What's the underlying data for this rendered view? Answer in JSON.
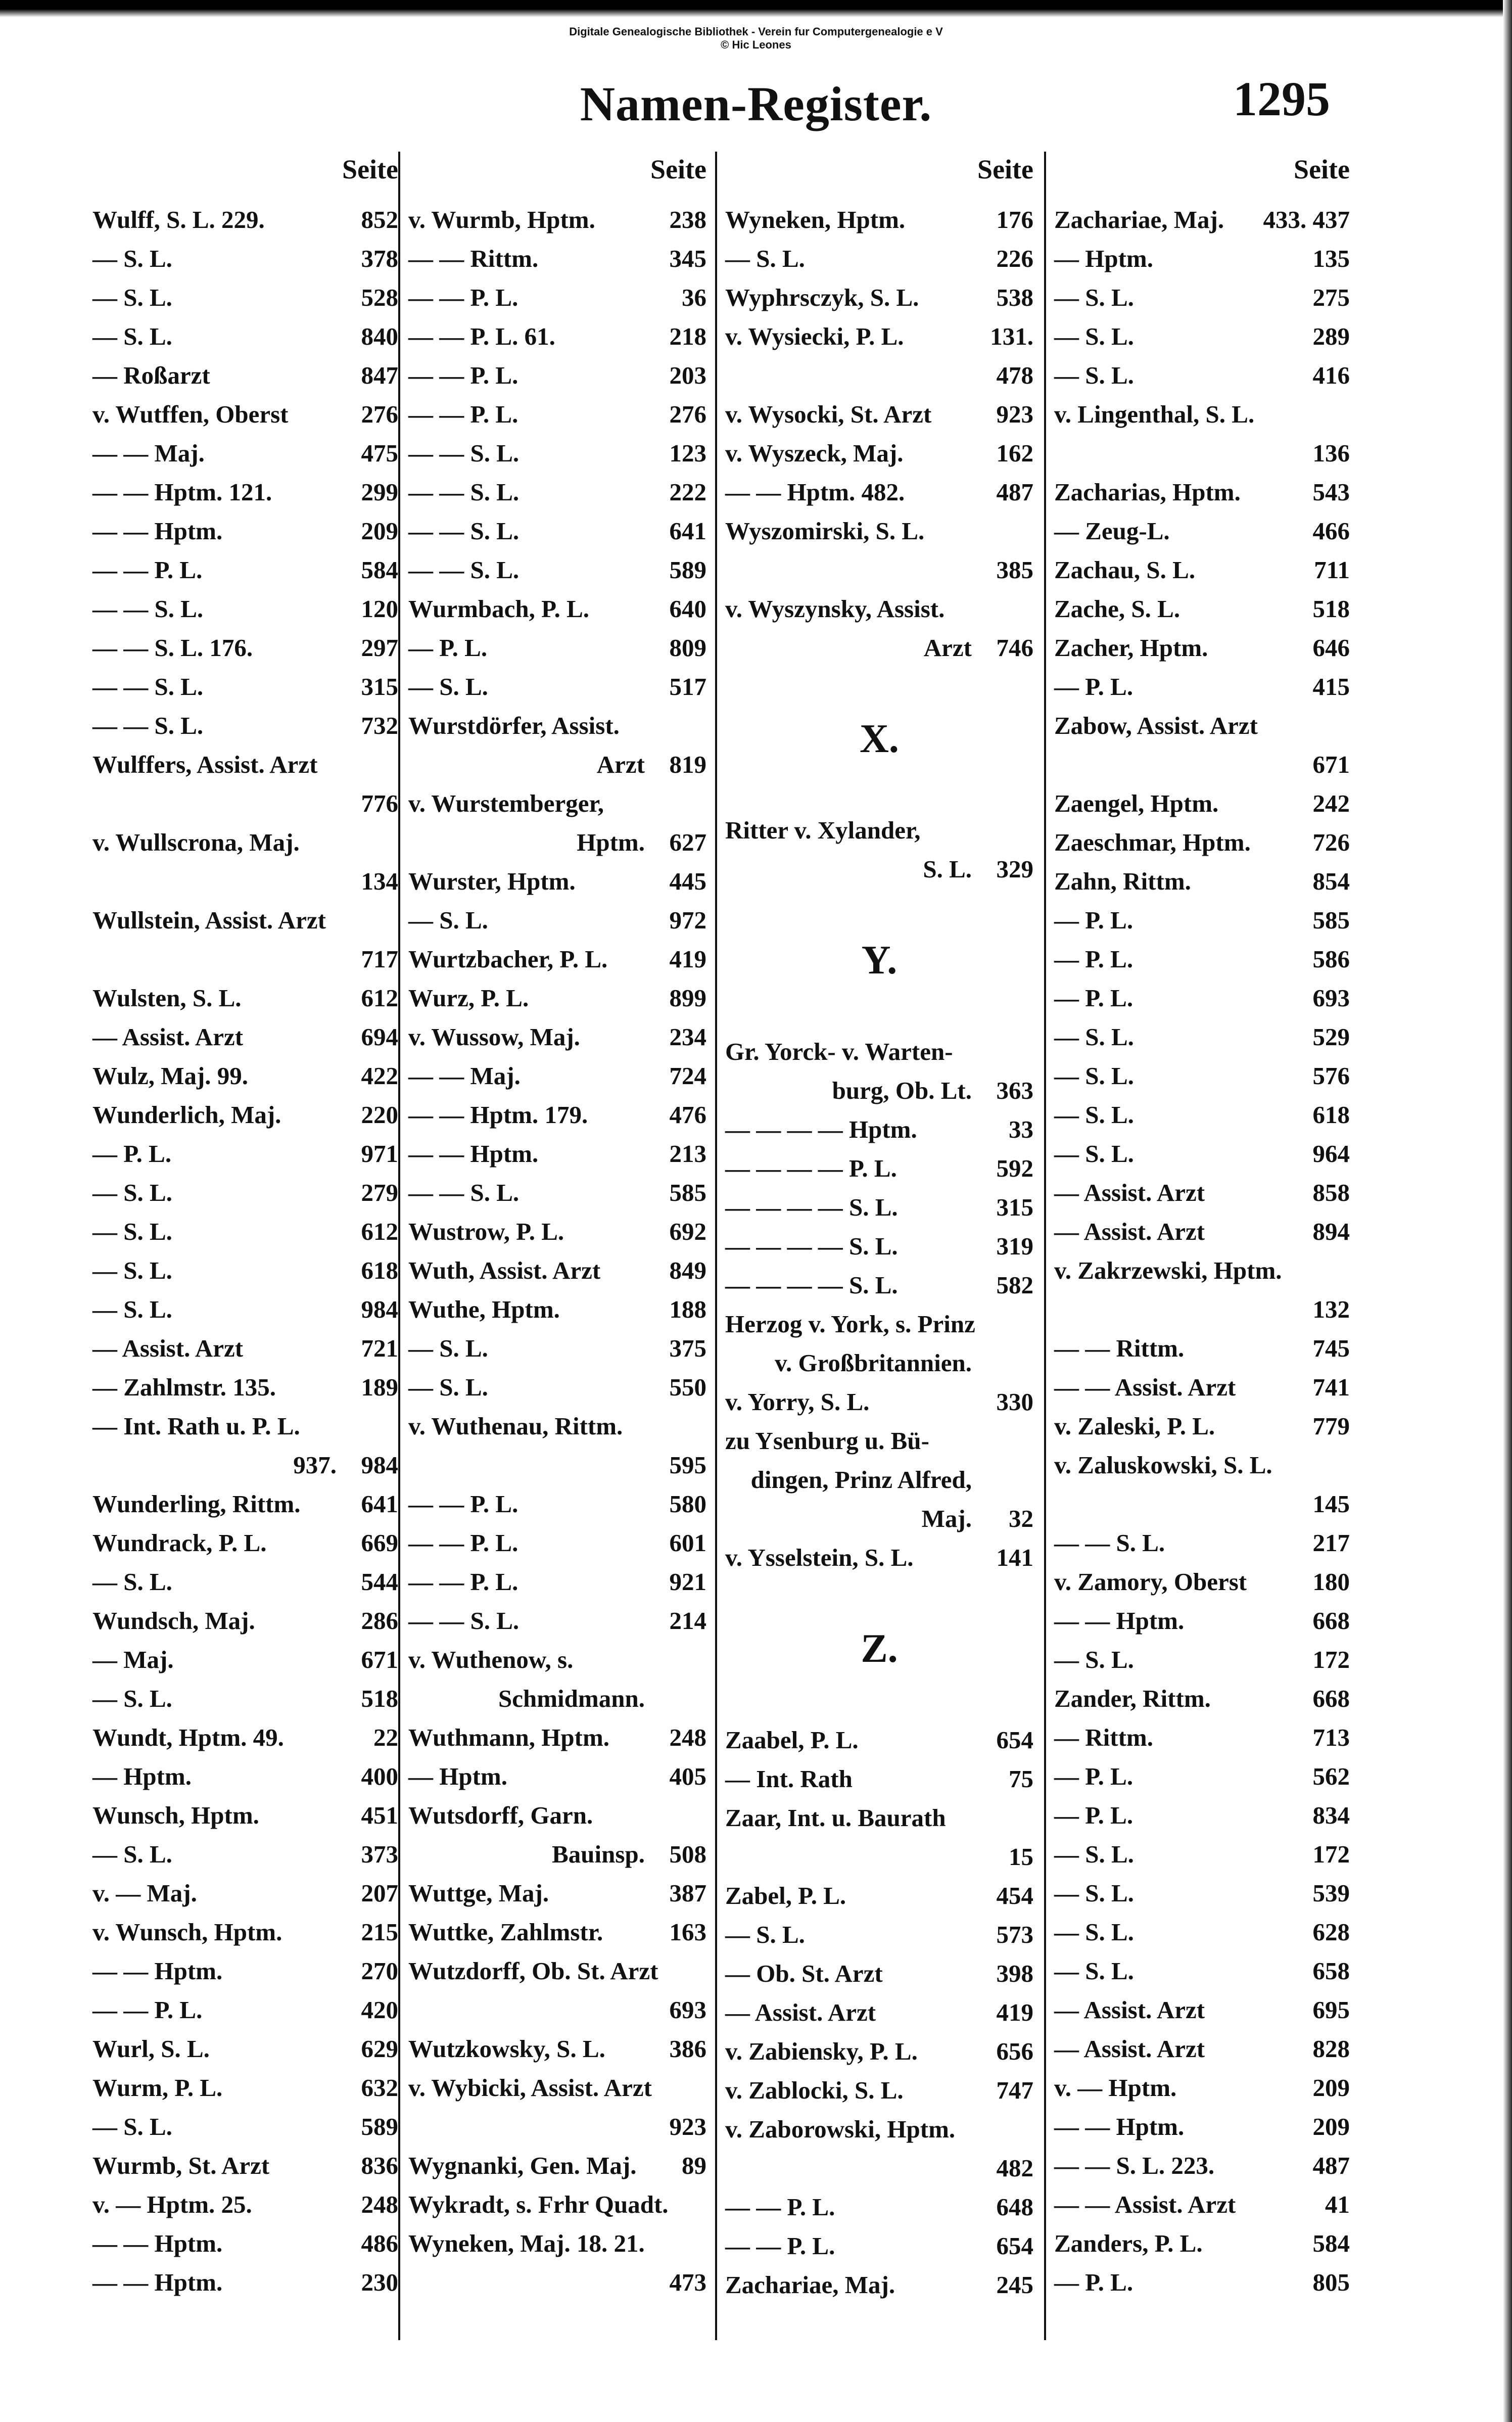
{
  "watermark": [
    "Digitale Genealogische Bibliothek - Verein fur Computergenealogie e V",
    "© Hic Leones"
  ],
  "title": "Namen-Register.",
  "page_number": "1295",
  "column_header": "Seite",
  "columns": [
    {
      "lines": [
        {
          "t": "Wulff, S. L.  229.",
          "p": "852"
        },
        {
          "t": "— S. L.",
          "p": "378"
        },
        {
          "t": "— S. L.",
          "p": "528"
        },
        {
          "t": "— S. L.",
          "p": "840"
        },
        {
          "t": "— Roßarzt",
          "p": "847"
        },
        {
          "t": "v. Wutffen, Oberst",
          "p": "276"
        },
        {
          "t": "— — Maj.",
          "p": "475"
        },
        {
          "t": "— — Hptm.  121.",
          "p": "299"
        },
        {
          "t": "— — Hptm.",
          "p": "209"
        },
        {
          "t": "— — P. L.",
          "p": "584"
        },
        {
          "t": "— — S. L.",
          "p": "120"
        },
        {
          "t": "— — S. L.  176.",
          "p": "297"
        },
        {
          "t": "— — S. L.",
          "p": "315"
        },
        {
          "t": "— — S. L.",
          "p": "732"
        },
        {
          "t": "Wulffers, Assist. Arzt",
          "p": ""
        },
        {
          "t": "",
          "p": "776",
          "cont": true
        },
        {
          "t": "v. Wullscrona, Maj.",
          "p": ""
        },
        {
          "t": "",
          "p": "134",
          "cont": true
        },
        {
          "t": "Wullstein, Assist. Arzt",
          "p": ""
        },
        {
          "t": "",
          "p": "717",
          "cont": true
        },
        {
          "t": "Wulsten, S. L.",
          "p": "612"
        },
        {
          "t": "— Assist. Arzt",
          "p": "694"
        },
        {
          "t": "Wulz, Maj.  99.",
          "p": "422"
        },
        {
          "t": "Wunderlich, Maj.",
          "p": "220"
        },
        {
          "t": "— P. L.",
          "p": "971"
        },
        {
          "t": "— S. L.",
          "p": "279"
        },
        {
          "t": "— S. L.",
          "p": "612"
        },
        {
          "t": "— S. L.",
          "p": "618"
        },
        {
          "t": "— S. L.",
          "p": "984"
        },
        {
          "t": "— Assist. Arzt",
          "p": "721"
        },
        {
          "t": "— Zahlmstr.  135.",
          "p": "189"
        },
        {
          "t": "— Int. Rath u. P. L.",
          "p": ""
        },
        {
          "t": "937.",
          "p": "984",
          "cont": true
        },
        {
          "t": "Wunderling, Rittm.",
          "p": "641"
        },
        {
          "t": "Wundrack, P. L.",
          "p": "669"
        },
        {
          "t": "— S. L.",
          "p": "544"
        },
        {
          "t": "Wundsch, Maj.",
          "p": "286"
        },
        {
          "t": "— Maj.",
          "p": "671"
        },
        {
          "t": "— S. L.",
          "p": "518"
        },
        {
          "t": "Wundt, Hptm.  49.",
          "p": "22"
        },
        {
          "t": "— Hptm.",
          "p": "400"
        },
        {
          "t": "Wunsch, Hptm.",
          "p": "451"
        },
        {
          "t": "— S. L.",
          "p": "373"
        },
        {
          "t": "v. — Maj.",
          "p": "207"
        },
        {
          "t": "v. Wunsch, Hptm.",
          "p": "215"
        },
        {
          "t": "— — Hptm.",
          "p": "270"
        },
        {
          "t": "— — P. L.",
          "p": "420"
        },
        {
          "t": "Wurl, S. L.",
          "p": "629"
        },
        {
          "t": "Wurm, P. L.",
          "p": "632"
        },
        {
          "t": "— S. L.",
          "p": "589"
        },
        {
          "t": "Wurmb, St. Arzt",
          "p": "836"
        },
        {
          "t": "v. — Hptm.  25.",
          "p": "248"
        },
        {
          "t": "— — Hptm.",
          "p": "486"
        },
        {
          "t": "— — Hptm.",
          "p": "230"
        }
      ]
    },
    {
      "lines": [
        {
          "t": "v. Wurmb, Hptm.",
          "p": "238"
        },
        {
          "t": "— — Rittm.",
          "p": "345"
        },
        {
          "t": "— — P. L.",
          "p": "36"
        },
        {
          "t": "— — P. L.  61.",
          "p": "218"
        },
        {
          "t": "— — P. L.",
          "p": "203"
        },
        {
          "t": "— — P. L.",
          "p": "276"
        },
        {
          "t": "— — S. L.",
          "p": "123"
        },
        {
          "t": "— — S. L.",
          "p": "222"
        },
        {
          "t": "— — S. L.",
          "p": "641"
        },
        {
          "t": "— — S. L.",
          "p": "589"
        },
        {
          "t": "Wurmbach, P. L.",
          "p": "640"
        },
        {
          "t": "— P. L.",
          "p": "809"
        },
        {
          "t": "— S. L.",
          "p": "517"
        },
        {
          "t": "Wurstdörfer, Assist.",
          "p": ""
        },
        {
          "t": "Arzt",
          "p": "819",
          "cont": true
        },
        {
          "t": "v. Wurstemberger,",
          "p": ""
        },
        {
          "t": "Hptm.",
          "p": "627",
          "cont": true
        },
        {
          "t": "Wurster, Hptm.",
          "p": "445"
        },
        {
          "t": "— S. L.",
          "p": "972"
        },
        {
          "t": "Wurtzbacher, P. L.",
          "p": "419"
        },
        {
          "t": "Wurz, P. L.",
          "p": "899"
        },
        {
          "t": "v. Wussow, Maj.",
          "p": "234"
        },
        {
          "t": "— — Maj.",
          "p": "724"
        },
        {
          "t": "— — Hptm.  179.",
          "p": "476"
        },
        {
          "t": "— — Hptm.",
          "p": "213"
        },
        {
          "t": "— — S. L.",
          "p": "585"
        },
        {
          "t": "Wustrow, P. L.",
          "p": "692"
        },
        {
          "t": "Wuth, Assist. Arzt",
          "p": "849"
        },
        {
          "t": "Wuthe, Hptm.",
          "p": "188"
        },
        {
          "t": "— S. L.",
          "p": "375"
        },
        {
          "t": "— S. L.",
          "p": "550"
        },
        {
          "t": "v. Wuthenau, Rittm.",
          "p": ""
        },
        {
          "t": "",
          "p": "595",
          "cont": true
        },
        {
          "t": "— — P. L.",
          "p": "580"
        },
        {
          "t": "— — P. L.",
          "p": "601"
        },
        {
          "t": "— — P. L.",
          "p": "921"
        },
        {
          "t": "— — S. L.",
          "p": "214"
        },
        {
          "t": "v. Wuthenow, s.",
          "p": ""
        },
        {
          "t": "Schmidmann.",
          "p": "",
          "cont": true
        },
        {
          "t": "Wuthmann, Hptm.",
          "p": "248"
        },
        {
          "t": "— Hptm.",
          "p": "405"
        },
        {
          "t": "Wutsdorff, Garn.",
          "p": ""
        },
        {
          "t": "Bauinsp.",
          "p": "508",
          "cont": true
        },
        {
          "t": "Wuttge, Maj.",
          "p": "387"
        },
        {
          "t": "Wuttke, Zahlmstr.",
          "p": "163"
        },
        {
          "t": "Wutzdorff, Ob. St. Arzt",
          "p": ""
        },
        {
          "t": "",
          "p": "693",
          "cont": true
        },
        {
          "t": "Wutzkowsky, S. L.",
          "p": "386"
        },
        {
          "t": "v. Wybicki, Assist. Arzt",
          "p": ""
        },
        {
          "t": "",
          "p": "923",
          "cont": true
        },
        {
          "t": "Wygnanki, Gen. Maj.",
          "p": "89"
        },
        {
          "t": "Wykradt, s. Frhr Quadt.",
          "p": ""
        },
        {
          "t": "Wyneken, Maj. 18. 21.",
          "p": ""
        },
        {
          "t": "",
          "p": "473",
          "cont": true
        }
      ]
    },
    {
      "lines": [
        {
          "t": "Wyneken, Hptm.",
          "p": "176"
        },
        {
          "t": "— S. L.",
          "p": "226"
        },
        {
          "t": "Wyphrsczyk, S. L.",
          "p": "538"
        },
        {
          "t": "v. Wysiecki, P. L.",
          "p": "131."
        },
        {
          "t": "",
          "p": "478",
          "cont": true
        },
        {
          "t": "v. Wysocki, St. Arzt",
          "p": "923"
        },
        {
          "t": "v. Wyszeck, Maj.",
          "p": "162"
        },
        {
          "t": "— — Hptm.  482.",
          "p": "487"
        },
        {
          "t": "Wyszomirski, S. L.",
          "p": ""
        },
        {
          "t": "",
          "p": "385",
          "cont": true
        },
        {
          "t": "v. Wyszynsky, Assist.",
          "p": ""
        },
        {
          "t": "Arzt",
          "p": "746",
          "cont": true
        },
        {
          "heading": "X."
        },
        {
          "t": "Ritter v. Xylander,",
          "p": ""
        },
        {
          "t": "S. L.",
          "p": "329",
          "cont": true
        },
        {
          "heading": "Y."
        },
        {
          "t": "Gr. Yorck- v. Warten-",
          "p": ""
        },
        {
          "t": "burg, Ob. Lt.",
          "p": "363",
          "cont": true
        },
        {
          "t": "— — — — Hptm.",
          "p": "33"
        },
        {
          "t": "— — — — P. L.",
          "p": "592"
        },
        {
          "t": "— — — — S. L.",
          "p": "315"
        },
        {
          "t": "— — — — S. L.",
          "p": "319"
        },
        {
          "t": "— — — — S. L.",
          "p": "582"
        },
        {
          "t": "Herzog v. York, s. Prinz",
          "p": ""
        },
        {
          "t": "v. Großbritannien.",
          "p": "",
          "cont": true
        },
        {
          "t": "v. Yorry, S. L.",
          "p": "330"
        },
        {
          "t": "zu Ysenburg u. Bü-",
          "p": ""
        },
        {
          "t": "dingen, Prinz Alfred,",
          "p": "",
          "cont": true
        },
        {
          "t": "Maj.",
          "p": "32",
          "cont": true
        },
        {
          "t": "v. Ysselstein, S. L.",
          "p": "141"
        },
        {
          "heading": "Z."
        },
        {
          "t": "Zaabel, P. L.",
          "p": "654"
        },
        {
          "t": "— Int. Rath",
          "p": "75"
        },
        {
          "t": "Zaar, Int. u. Baurath",
          "p": ""
        },
        {
          "t": "",
          "p": "15",
          "cont": true
        },
        {
          "t": "Zabel, P. L.",
          "p": "454"
        },
        {
          "t": "— S. L.",
          "p": "573"
        },
        {
          "t": "— Ob. St. Arzt",
          "p": "398"
        },
        {
          "t": "— Assist. Arzt",
          "p": "419"
        },
        {
          "t": "v. Zabiensky, P. L.",
          "p": "656"
        },
        {
          "t": "v. Zablocki, S. L.",
          "p": "747"
        },
        {
          "t": "v. Zaborowski, Hptm.",
          "p": ""
        },
        {
          "t": "",
          "p": "482",
          "cont": true
        },
        {
          "t": "— — P. L.",
          "p": "648"
        },
        {
          "t": "— — P. L.",
          "p": "654"
        },
        {
          "t": "Zachariae, Maj.",
          "p": "245"
        }
      ]
    },
    {
      "lines": [
        {
          "t": "Zachariae, Maj.",
          "p": "433. 437"
        },
        {
          "t": "— Hptm.",
          "p": "135"
        },
        {
          "t": "— S. L.",
          "p": "275"
        },
        {
          "t": "— S. L.",
          "p": "289"
        },
        {
          "t": "— S. L.",
          "p": "416"
        },
        {
          "t": "v. Lingenthal, S. L.",
          "p": ""
        },
        {
          "t": "",
          "p": "136",
          "cont": true
        },
        {
          "t": "Zacharias, Hptm.",
          "p": "543"
        },
        {
          "t": "— Zeug-L.",
          "p": "466"
        },
        {
          "t": "Zachau, S. L.",
          "p": "711"
        },
        {
          "t": "Zache, S. L.",
          "p": "518"
        },
        {
          "t": "Zacher, Hptm.",
          "p": "646"
        },
        {
          "t": "— P. L.",
          "p": "415"
        },
        {
          "t": "Zabow, Assist. Arzt",
          "p": ""
        },
        {
          "t": "",
          "p": "671",
          "cont": true
        },
        {
          "t": "Zaengel, Hptm.",
          "p": "242"
        },
        {
          "t": "Zaeschmar, Hptm.",
          "p": "726"
        },
        {
          "t": "Zahn, Rittm.",
          "p": "854"
        },
        {
          "t": "— P. L.",
          "p": "585"
        },
        {
          "t": "— P. L.",
          "p": "586"
        },
        {
          "t": "— P. L.",
          "p": "693"
        },
        {
          "t": "— S. L.",
          "p": "529"
        },
        {
          "t": "— S. L.",
          "p": "576"
        },
        {
          "t": "— S. L.",
          "p": "618"
        },
        {
          "t": "— S. L.",
          "p": "964"
        },
        {
          "t": "— Assist. Arzt",
          "p": "858"
        },
        {
          "t": "— Assist. Arzt",
          "p": "894"
        },
        {
          "t": "v. Zakrzewski, Hptm.",
          "p": ""
        },
        {
          "t": "",
          "p": "132",
          "cont": true
        },
        {
          "t": "— — Rittm.",
          "p": "745"
        },
        {
          "t": "— — Assist. Arzt",
          "p": "741"
        },
        {
          "t": "v. Zaleski, P. L.",
          "p": "779"
        },
        {
          "t": "v. Zaluskowski, S. L.",
          "p": ""
        },
        {
          "t": "",
          "p": "145",
          "cont": true
        },
        {
          "t": "— — S. L.",
          "p": "217"
        },
        {
          "t": "v. Zamory, Oberst",
          "p": "180"
        },
        {
          "t": "— — Hptm.",
          "p": "668"
        },
        {
          "t": "— S. L.",
          "p": "172"
        },
        {
          "t": "Zander, Rittm.",
          "p": "668"
        },
        {
          "t": "— Rittm.",
          "p": "713"
        },
        {
          "t": "— P. L.",
          "p": "562"
        },
        {
          "t": "— P. L.",
          "p": "834"
        },
        {
          "t": "— S. L.",
          "p": "172"
        },
        {
          "t": "— S. L.",
          "p": "539"
        },
        {
          "t": "— S. L.",
          "p": "628"
        },
        {
          "t": "— S. L.",
          "p": "658"
        },
        {
          "t": "— Assist. Arzt",
          "p": "695"
        },
        {
          "t": "— Assist. Arzt",
          "p": "828"
        },
        {
          "t": "v. — Hptm.",
          "p": "209"
        },
        {
          "t": "— — Hptm.",
          "p": "209"
        },
        {
          "t": "— — S. L.  223.",
          "p": "487"
        },
        {
          "t": "— — Assist. Arzt",
          "p": "41"
        },
        {
          "t": "Zanders, P. L.",
          "p": "584"
        },
        {
          "t": "— P. L.",
          "p": "805"
        }
      ]
    }
  ]
}
